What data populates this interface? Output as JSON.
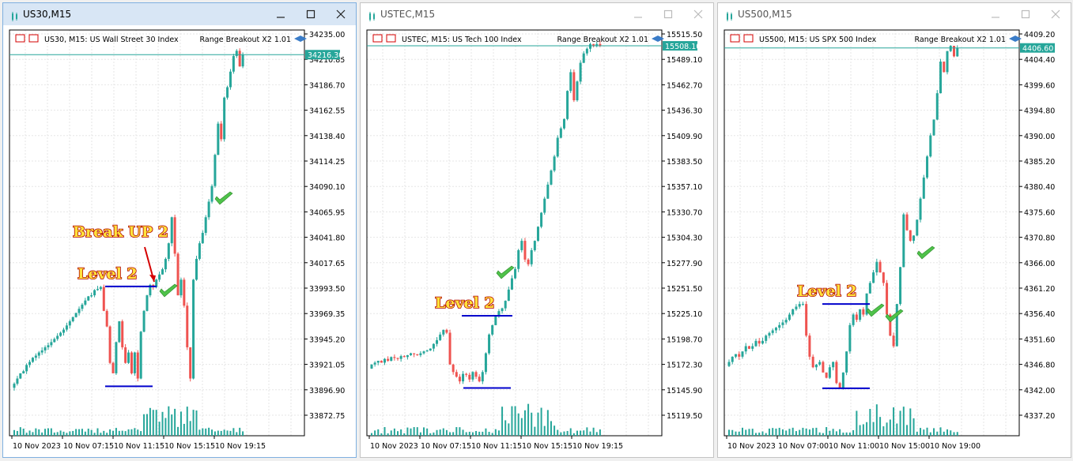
{
  "colors": {
    "bull": "#26a69a",
    "bear": "#ef5350",
    "grid": "#e6e6e6",
    "level": "#0000cc",
    "price_tag": "#26a69a",
    "annotation": "#d40000"
  },
  "windows": [
    {
      "title": "US30,M15",
      "active": true,
      "chart_data": {
        "type": "candlestick",
        "symbol_line": "US30, M15:  US Wall Street 30 Index",
        "indicator": "Range Breakout X2 1.01",
        "y_ticks": [
          "34235.00",
          "34210.85",
          "34186.70",
          "34162.55",
          "34138.40",
          "34114.25",
          "34090.10",
          "34065.95",
          "34041.80",
          "34017.65",
          "33993.50",
          "33969.35",
          "33945.20",
          "33921.05",
          "33896.90",
          "33872.75"
        ],
        "ylim": [
          33850,
          34240
        ],
        "current_price": "34216.30",
        "x_ticks": [
          "10 Nov 2023",
          "10 Nov 07:15",
          "10 Nov 11:15",
          "10 Nov 15:15",
          "10 Nov 19:15"
        ],
        "series_close": [
          33900,
          33905,
          33910,
          33912,
          33918,
          33921,
          33925,
          33927,
          33930,
          33932,
          33935,
          33937,
          33940,
          33943,
          33946,
          33949,
          33952,
          33956,
          33960,
          33964,
          33968,
          33972,
          33976,
          33980,
          33984,
          33985,
          33990,
          33991,
          33993,
          33970,
          33955,
          33920,
          33910,
          33940,
          33960,
          33935,
          33920,
          33930,
          33910,
          33930,
          33905,
          33950,
          33970,
          33985,
          33995,
          33993,
          34000,
          34005,
          34010,
          34020,
          34035,
          34060,
          34025,
          33985,
          34000,
          33975,
          33935,
          33905,
          34000,
          34020,
          34035,
          34045,
          34060,
          34075,
          34090,
          34120,
          34150,
          34135,
          34175,
          34185,
          34200,
          34215,
          34220,
          34205,
          34216
        ],
        "labels": [
          {
            "text": "Break UP 2"
          },
          {
            "text": "Level 2"
          }
        ],
        "levels": [
          {
            "value": 33993.5
          },
          {
            "value": 33897.5
          }
        ]
      }
    },
    {
      "title": "USTEC,M15",
      "active": false,
      "chart_data": {
        "type": "candlestick",
        "symbol_line": "USTEC, M15:  US Tech 100 Index",
        "indicator": "Range Breakout X2 1.01",
        "y_ticks": [
          "15515.50",
          "15489.10",
          "15462.70",
          "15436.30",
          "15409.90",
          "15383.50",
          "15357.10",
          "15330.70",
          "15304.30",
          "15277.90",
          "15251.50",
          "15225.10",
          "15198.70",
          "15172.30",
          "15145.90",
          "15119.50"
        ],
        "ylim": [
          15092,
          15525
        ],
        "current_price": "15508.10",
        "x_ticks": [
          "10 Nov 2023",
          "10 Nov 07:15",
          "10 Nov 11:15",
          "10 Nov 15:15",
          "10 Nov 19:15"
        ],
        "series_close": [
          15168,
          15170,
          15172,
          15170,
          15174,
          15172,
          15176,
          15175,
          15174,
          15177,
          15176,
          15178,
          15180,
          15179,
          15178,
          15180,
          15182,
          15183,
          15185,
          15190,
          15194,
          15200,
          15205,
          15202,
          15168,
          15160,
          15155,
          15150,
          15158,
          15157,
          15152,
          15160,
          15155,
          15150,
          15160,
          15180,
          15200,
          15210,
          15220,
          15225,
          15228,
          15236,
          15248,
          15260,
          15270,
          15290,
          15300,
          15280,
          15275,
          15290,
          15300,
          15315,
          15330,
          15345,
          15360,
          15375,
          15390,
          15410,
          15420,
          15430,
          15460,
          15480,
          15450,
          15470,
          15490,
          15500,
          15505,
          15510,
          15508,
          15510,
          15508
        ],
        "labels": [
          {
            "text": "Level 2"
          }
        ],
        "levels": [
          {
            "value": 15220
          },
          {
            "value": 15143
          }
        ]
      }
    },
    {
      "title": "US500,M15",
      "active": false,
      "chart_data": {
        "type": "candlestick",
        "symbol_line": "US500, M15:  US SPX 500 Index",
        "indicator": "Range Breakout X2 1.01",
        "y_ticks": [
          "4409.20",
          "4404.40",
          "4399.60",
          "4394.80",
          "4390.00",
          "4385.20",
          "4380.40",
          "4375.60",
          "4370.80",
          "4366.00",
          "4361.20",
          "4356.40",
          "4351.60",
          "4346.80",
          "4342.00",
          "4337.20"
        ],
        "ylim": [
          4333,
          4410
        ],
        "current_price": "4406.60",
        "x_ticks": [
          "10 Nov 2023",
          "10 Nov 07:00",
          "10 Nov 11:00",
          "10 Nov 15:00",
          "10 Nov 19:00"
        ],
        "series_close": [
          4347,
          4348,
          4348.5,
          4348,
          4349,
          4350,
          4349.5,
          4350,
          4351,
          4350.5,
          4351,
          4352,
          4352.5,
          4353,
          4353.5,
          4354,
          4354.5,
          4355,
          4356,
          4357,
          4357.5,
          4358,
          4358,
          4352,
          4348,
          4346,
          4346.5,
          4347,
          4345,
          4344,
          4346,
          4347,
          4343,
          4342,
          4345,
          4349,
          4354,
          4356,
          4355,
          4357,
          4356,
          4360,
          4362,
          4364,
          4366,
          4364,
          4362,
          4356,
          4352,
          4350,
          4358,
          4365,
          4375,
          4372,
          4370,
          4371,
          4374,
          4378,
          4382,
          4386,
          4390,
          4393,
          4398,
          4404,
          4402,
          4406,
          4407,
          4405,
          4406.6
        ],
        "labels": [
          {
            "text": "Level 2"
          }
        ],
        "levels": [
          {
            "value": 4358
          },
          {
            "value": 4342
          }
        ]
      }
    }
  ]
}
